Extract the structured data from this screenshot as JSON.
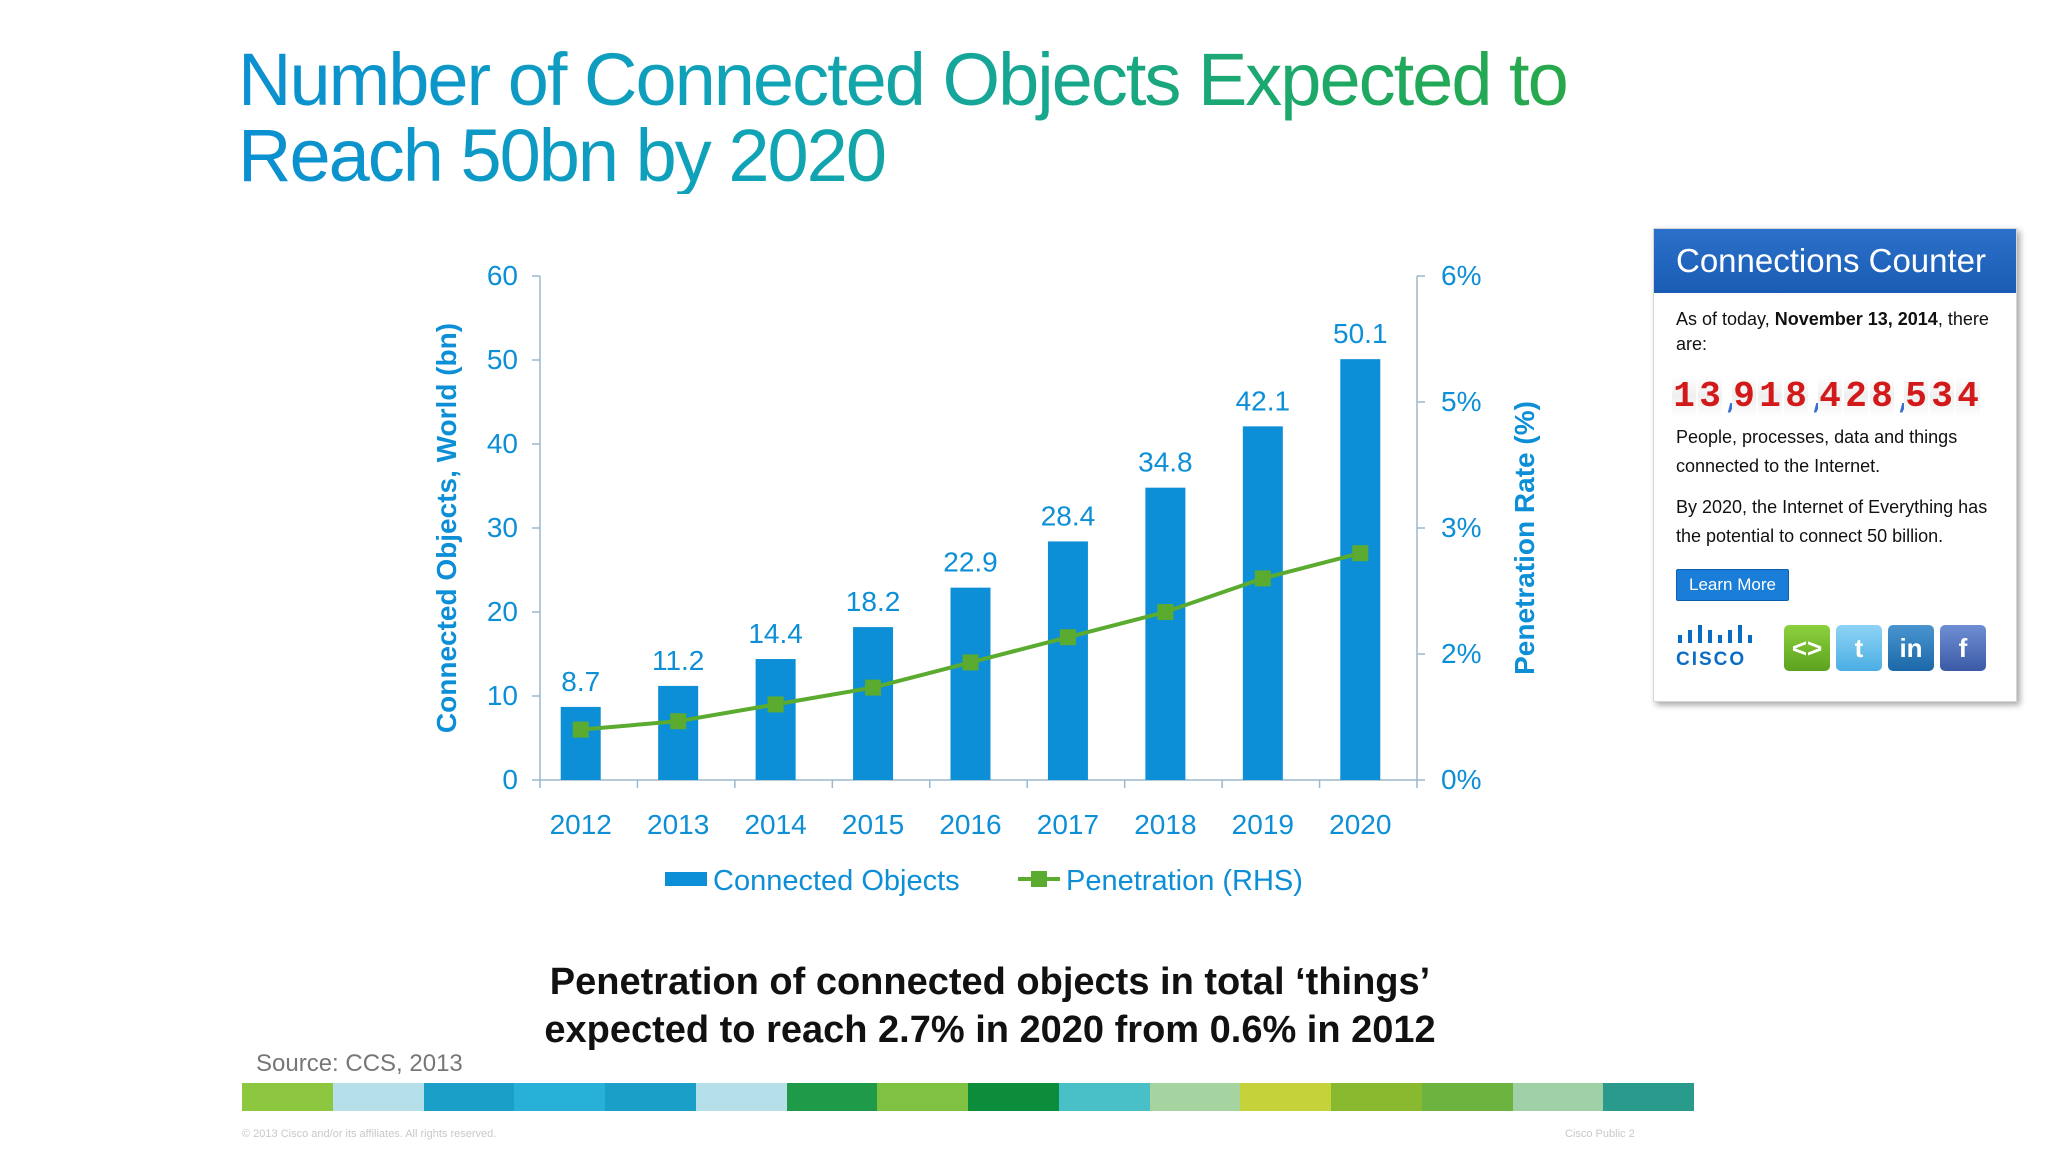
{
  "title": {
    "line1": "Number of Connected Objects Expected to",
    "line2": "Reach 50bn by 2020"
  },
  "chart_data": {
    "type": "bar",
    "categories": [
      "2012",
      "2013",
      "2014",
      "2015",
      "2016",
      "2017",
      "2018",
      "2019",
      "2020"
    ],
    "series": [
      {
        "name": "Connected Objects",
        "type": "bar",
        "axis": "left",
        "values": [
          8.7,
          11.2,
          14.4,
          18.2,
          22.9,
          28.4,
          34.8,
          42.1,
          50.1
        ],
        "labels": [
          "8.7",
          "11.2",
          "14.4",
          "18.2",
          "22.9",
          "28.4",
          "34.8",
          "42.1",
          "50.1"
        ],
        "color": "#0c8fd6"
      },
      {
        "name": "Penetration (RHS)",
        "type": "line",
        "axis": "right",
        "values": [
          0.6,
          0.7,
          0.9,
          1.1,
          1.4,
          1.7,
          2.0,
          2.4,
          2.7
        ],
        "color": "#5aab2f"
      }
    ],
    "ylabel": "Connected Objects, World (bn)",
    "ylabel_right": "Penetration Rate (%)",
    "ylim": [
      0,
      60
    ],
    "yticks": [
      "0",
      "10",
      "20",
      "30",
      "40",
      "50",
      "60"
    ],
    "ylim_right": [
      0,
      6
    ],
    "yticks_right": [
      "0%",
      "2%",
      "3%",
      "5%",
      "6%"
    ],
    "yticks_right_values": [
      0,
      1.5,
      3,
      4.5,
      6
    ],
    "legend_position": "bottom",
    "grid": false,
    "axis_color": "#0c8fd6"
  },
  "caption": {
    "line1": "Penetration of connected objects in total ‘things’",
    "line2": "expected to reach 2.7% in 2020 from 0.6% in 2012"
  },
  "source": "Source: CCS, 2013",
  "footer": {
    "left": "© 2013 Cisco and/or its affiliates. All rights reserved.",
    "right": "Cisco Public     2"
  },
  "widget": {
    "title": "Connections Counter",
    "intro_prefix": "As of today, ",
    "date": "November 13, 2014",
    "intro_suffix": ", there are:",
    "counter": "13,918,428,534",
    "text1": "People, processes, data and things connected to the Internet.",
    "text2": "By 2020, the Internet of Everything has the potential to connect 50 billion.",
    "button": "Learn More",
    "logo_word": "CISCO",
    "social": [
      {
        "icon": "embed-icon",
        "glyph": "<>"
      },
      {
        "icon": "twitter-icon",
        "glyph": "t"
      },
      {
        "icon": "linkedin-icon",
        "glyph": "in"
      },
      {
        "icon": "facebook-icon",
        "glyph": "f"
      }
    ]
  },
  "stripe_colors": [
    "#8dc63f",
    "#b5e0ea",
    "#1a9fc8",
    "#27b0d8",
    "#1a9fc8",
    "#b5e0ea",
    "#1f9a48",
    "#7fc241",
    "#0b8d3c",
    "#49c0c8",
    "#a6d4a0",
    "#c5d23a",
    "#88b92e",
    "#6db33f",
    "#9fd0a6",
    "#2a9a8c"
  ],
  "colors": {
    "accent_blue": "#0c8fd6",
    "accent_green": "#5aab2f",
    "counter_red": "#d21a1a"
  }
}
